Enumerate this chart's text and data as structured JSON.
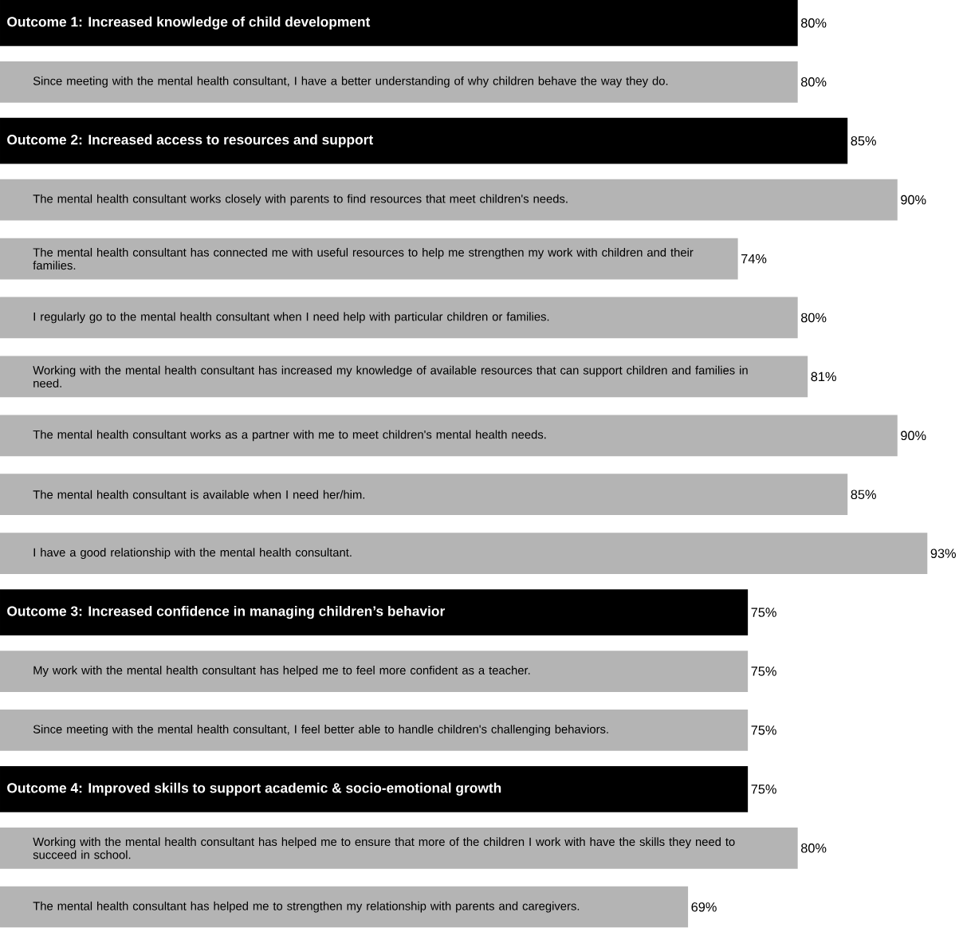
{
  "chart_data": {
    "type": "bar",
    "orientation": "horizontal",
    "categories": [
      "Outcome 1: Increased knowledge of child development",
      "Since meeting with the mental health consultant, I have a better understanding of why children behave the way they do.",
      "Outcome 2: Increased access to resources and support",
      "The mental health consultant works closely with parents to find resources that meet children's needs.",
      "The mental health consultant has connected me with useful resources to help me strengthen my work with children and their families.",
      "I regularly go to the mental health consultant when I need help with particular children or families.",
      "Working with the mental health consultant has increased my knowledge of available resources that can support children and families in need.",
      "The mental health consultant works as a partner with me to meet children's mental health needs.",
      "The mental health consultant is available when I need her/him.",
      "I have a good relationship with the mental health consultant.",
      "Outcome 3: Increased confidence in managing children’s behavior",
      "My work with the mental health consultant has helped me to feel more confident as a teacher.",
      "Since meeting with the mental health consultant, I feel better able to handle children's challenging behaviors.",
      "Outcome 4: Improved skills to support academic & socio-emotional growth",
      "Working with the mental health consultant has helped me to ensure that more of the children I work with have the skills they need to succeed in school.",
      "The mental health consultant has helped me to strengthen my relationship with parents and caregivers."
    ],
    "values": [
      80,
      80,
      85,
      90,
      74,
      80,
      81,
      90,
      85,
      93,
      75,
      75,
      75,
      75,
      80,
      69
    ],
    "colors": [
      "#000000",
      "#b4b4b4",
      "#000000",
      "#b4b4b4",
      "#b4b4b4",
      "#b4b4b4",
      "#b4b4b4",
      "#b4b4b4",
      "#b4b4b4",
      "#b4b4b4",
      "#000000",
      "#b4b4b4",
      "#b4b4b4",
      "#000000",
      "#b4b4b4",
      "#b4b4b4"
    ],
    "value_labels": [
      "80%",
      "80%",
      "85%",
      "90%",
      "74%",
      "80%",
      "81%",
      "90%",
      "85%",
      "93%",
      "75%",
      "75%",
      "75%",
      "75%",
      "80%",
      "69%"
    ]
  }
}
